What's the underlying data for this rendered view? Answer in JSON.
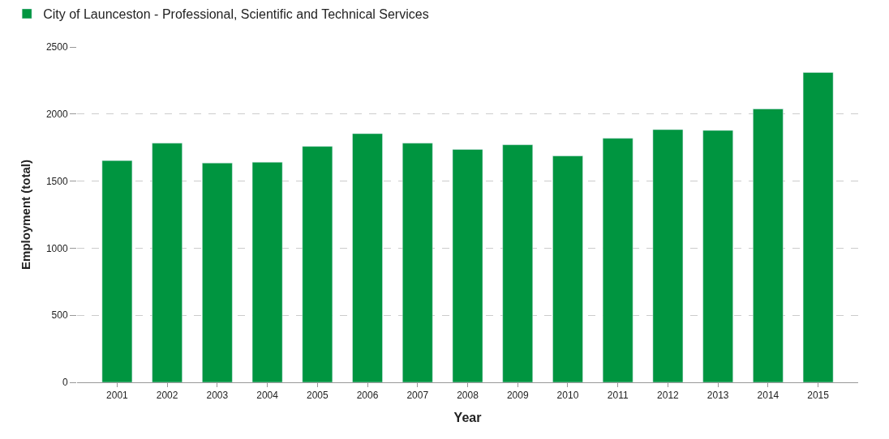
{
  "chart_data": {
    "type": "bar",
    "xlabel": "Year",
    "ylabel": "Employment (total)",
    "categories": [
      "2001",
      "2002",
      "2003",
      "2004",
      "2005",
      "2006",
      "2007",
      "2008",
      "2009",
      "2010",
      "2011",
      "2012",
      "2013",
      "2014",
      "2015"
    ],
    "series": [
      {
        "name": "City of Launceston - Professional, Scientific and Technical Services",
        "color": "#009540",
        "values": [
          1653,
          1783,
          1635,
          1641,
          1759,
          1854,
          1783,
          1736,
          1771,
          1688,
          1819,
          1884,
          1878,
          2038,
          2310
        ]
      }
    ],
    "ylim": [
      0,
      2500
    ],
    "yticks": [
      0,
      500,
      1000,
      1500,
      2000,
      2500
    ],
    "grid": "y",
    "legend": "top left"
  }
}
